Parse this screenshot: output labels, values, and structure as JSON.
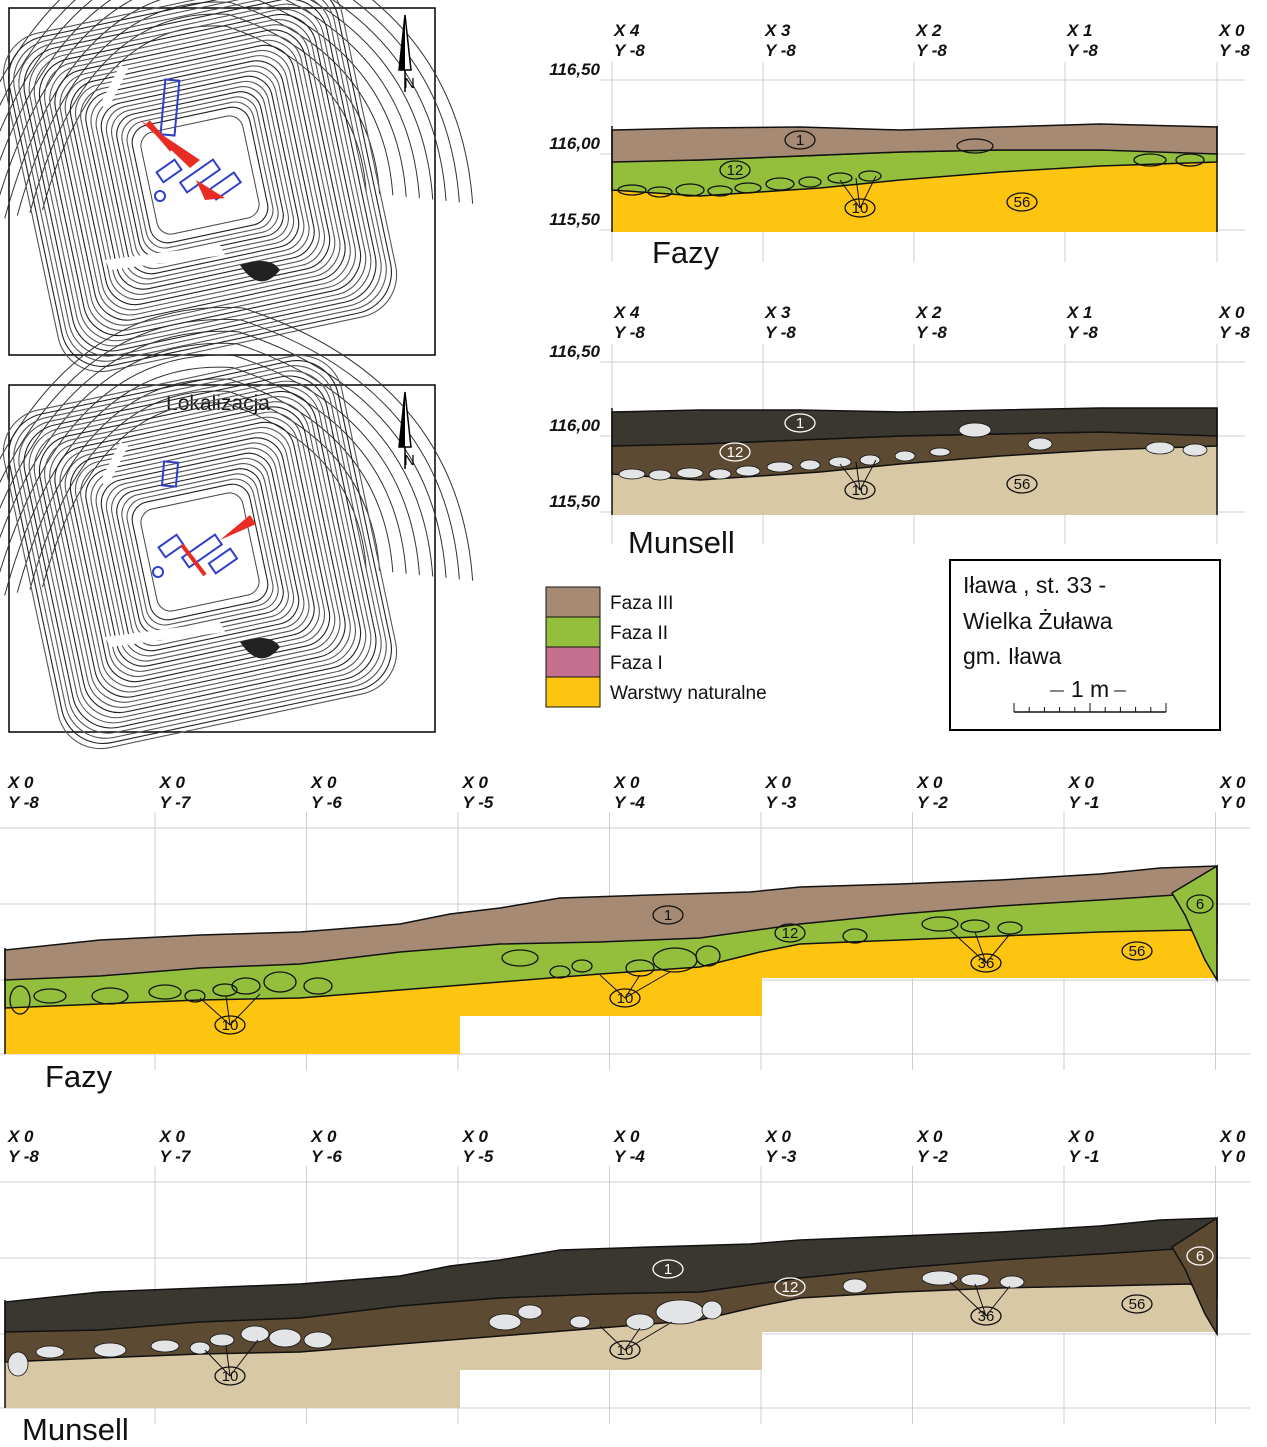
{
  "colors": {
    "faza3": "#a68a73",
    "faza2": "#93bf3d",
    "faza1": "#c6708f",
    "natural": "#fdc510",
    "munsell_top": "#3a3630",
    "munsell_mid": "#5d4a32",
    "munsell_base": "#d8c8a6",
    "stone_munsell": "#e3e4e6"
  },
  "maps": {
    "top": {
      "north": "N"
    },
    "bottom": {
      "title": "Lokalizacja",
      "north": "N"
    }
  },
  "top_sections": {
    "x_labels": [
      {
        "x": "X 4",
        "y": "Y -8"
      },
      {
        "x": "X 3",
        "y": "Y -8"
      },
      {
        "x": "X 2",
        "y": "Y -8"
      },
      {
        "x": "X 1",
        "y": "Y -8"
      },
      {
        "x": "X 0",
        "y": "Y -8"
      }
    ],
    "elevations": [
      "116,50",
      "116,00",
      "115,50"
    ],
    "fazy_title": "Fazy",
    "munsell_title": "Munsell",
    "layer_numbers": [
      "1",
      "12",
      "10",
      "56"
    ]
  },
  "bottom_sections": {
    "x_labels": [
      {
        "x": "X 0",
        "y": "Y -8"
      },
      {
        "x": "X 0",
        "y": "Y -7"
      },
      {
        "x": "X 0",
        "y": "Y -6"
      },
      {
        "x": "X 0",
        "y": "Y -5"
      },
      {
        "x": "X 0",
        "y": "Y -4"
      },
      {
        "x": "X 0",
        "y": "Y -3"
      },
      {
        "x": "X 0",
        "y": "Y -2"
      },
      {
        "x": "X 0",
        "y": "Y -1"
      },
      {
        "x": "X 0",
        "y": "Y 0"
      }
    ],
    "fazy_title": "Fazy",
    "munsell_title": "Munsell",
    "layer_numbers": [
      "1",
      "12",
      "10",
      "10",
      "36",
      "56",
      "6"
    ]
  },
  "legend": [
    {
      "label": "Faza III",
      "color": "#a68a73"
    },
    {
      "label": "Faza II",
      "color": "#93bf3d"
    },
    {
      "label": "Faza I",
      "color": "#c6708f"
    },
    {
      "label": "Warstwy naturalne",
      "color": "#fdc510"
    }
  ],
  "info": {
    "line1": "Iława , st. 33 -",
    "line2": "Wielka Żuława",
    "line3": "gm. Iława",
    "scale": "1 m"
  }
}
